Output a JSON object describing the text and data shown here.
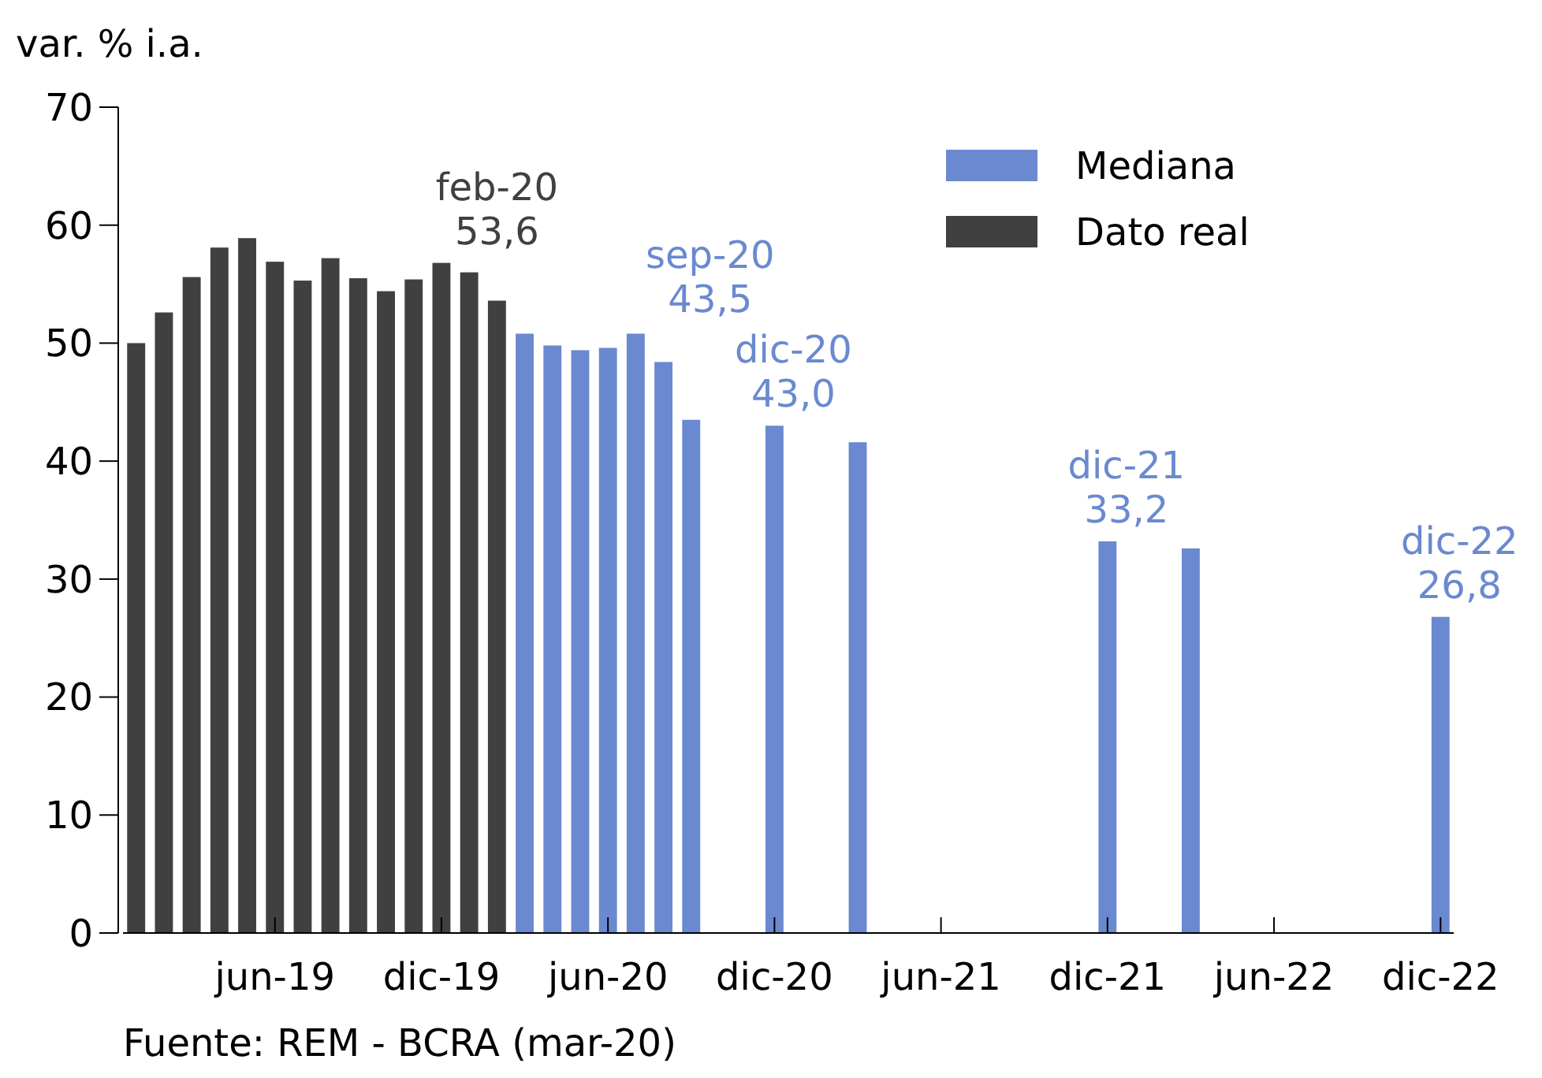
{
  "chart_data": {
    "type": "bar",
    "ylabel": "var. % i.a.",
    "categories": [
      null,
      null,
      null,
      null,
      null,
      "jun-19",
      null,
      null,
      null,
      null,
      null,
      "dic-19",
      null,
      null,
      null,
      null,
      null,
      "jun-20",
      null,
      null,
      null,
      null,
      null,
      "dic-20",
      null,
      null,
      null,
      null,
      null,
      "jun-21",
      null,
      null,
      null,
      null,
      null,
      "dic-21",
      null,
      null,
      null,
      null,
      null,
      "jun-22",
      null,
      null,
      null,
      null,
      null,
      "dic-22"
    ],
    "series": [
      {
        "name": "Mediana",
        "color": "#6a89d0",
        "values": [
          null,
          null,
          null,
          null,
          null,
          null,
          null,
          null,
          null,
          null,
          null,
          null,
          null,
          null,
          50.8,
          49.8,
          49.4,
          49.6,
          50.8,
          48.4,
          43.5,
          null,
          null,
          43.0,
          null,
          null,
          41.6,
          null,
          null,
          null,
          null,
          null,
          null,
          null,
          null,
          33.2,
          null,
          null,
          32.6,
          null,
          null,
          null,
          null,
          null,
          null,
          null,
          null,
          26.8
        ],
        "value_labels": [
          null,
          null,
          null,
          null,
          null,
          null,
          null,
          null,
          null,
          null,
          null,
          null,
          null,
          null,
          null,
          null,
          null,
          null,
          null,
          null,
          "sep-20\n43,5",
          null,
          null,
          "dic-20\n43,0",
          null,
          null,
          null,
          null,
          null,
          null,
          null,
          null,
          null,
          null,
          null,
          "dic-21\n33,2",
          null,
          null,
          null,
          null,
          null,
          null,
          null,
          null,
          null,
          null,
          null,
          "dic-22\n26,8"
        ]
      },
      {
        "name": "Dato real",
        "color": "#404040",
        "values": [
          50.0,
          52.6,
          55.6,
          58.1,
          58.9,
          56.9,
          55.3,
          57.2,
          55.5,
          54.4,
          55.4,
          56.8,
          56.0,
          53.6,
          null,
          null,
          null,
          null,
          null,
          null,
          null,
          null,
          null,
          null,
          null,
          null,
          null,
          null,
          null,
          null,
          null,
          null,
          null,
          null,
          null,
          null,
          null,
          null,
          null,
          null,
          null,
          null,
          null,
          null,
          null,
          null,
          null,
          null
        ],
        "value_labels": [
          null,
          null,
          null,
          null,
          null,
          null,
          null,
          null,
          null,
          null,
          null,
          null,
          null,
          "feb-20\n53,6",
          null,
          null,
          null,
          null,
          null,
          null,
          null,
          null,
          null,
          null,
          null,
          null,
          null,
          null,
          null,
          null,
          null,
          null,
          null,
          null,
          null,
          null,
          null,
          null,
          null,
          null,
          null,
          null,
          null,
          null,
          null,
          null,
          null,
          null
        ]
      }
    ],
    "ylim": [
      0,
      70
    ],
    "yticks": [
      0,
      10,
      20,
      30,
      40,
      50,
      60,
      70
    ],
    "legend": "top right",
    "annotations": [
      "Fuente: REM - BCRA (mar-20)"
    ]
  }
}
